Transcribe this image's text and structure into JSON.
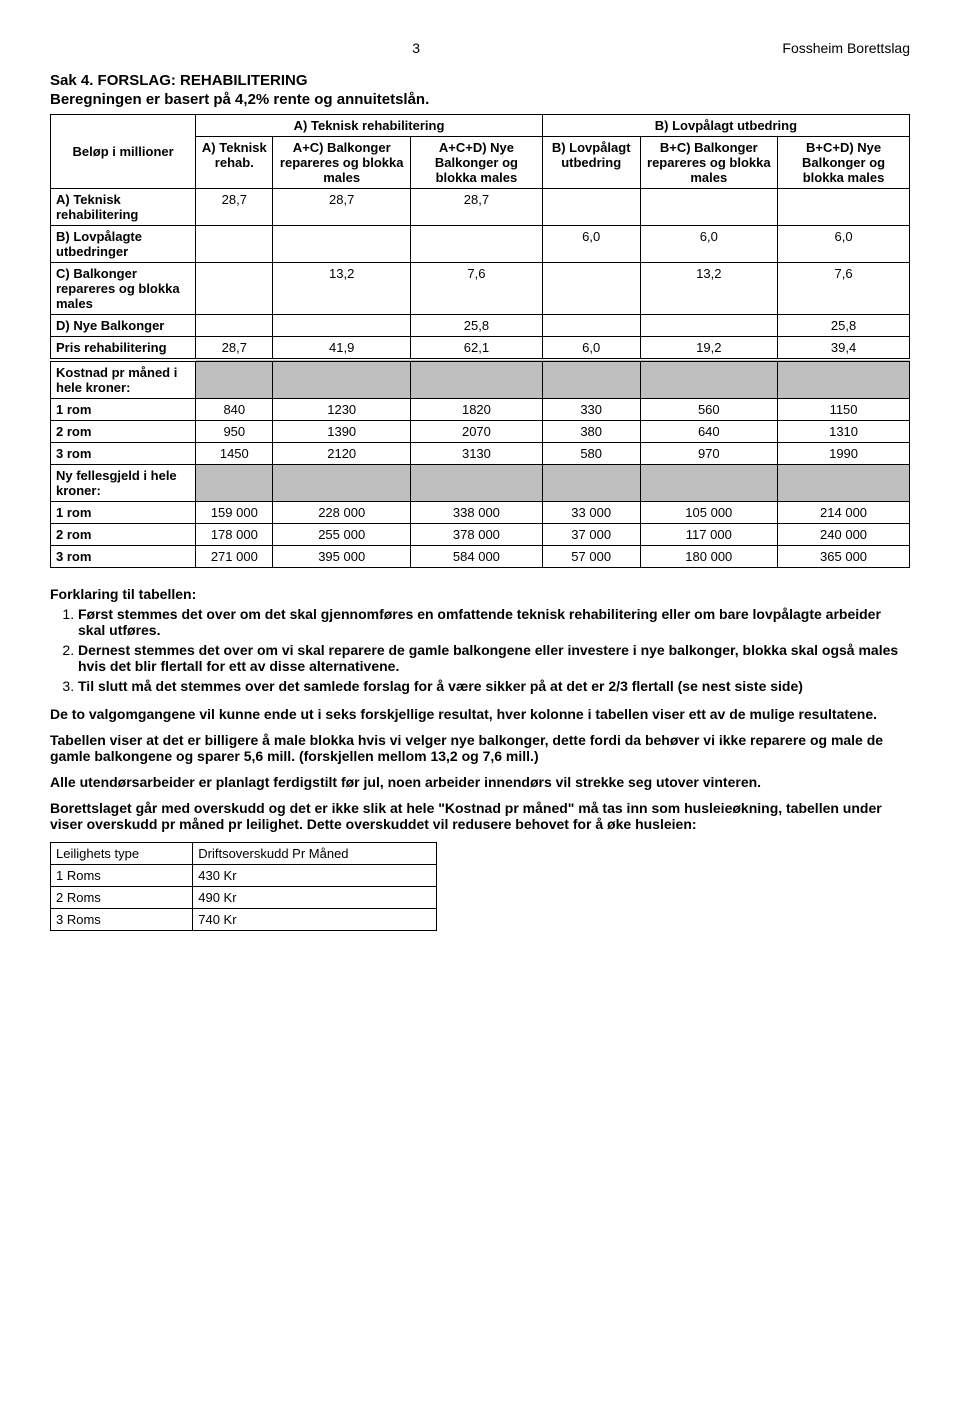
{
  "header": {
    "page_no": "3",
    "org": "Fossheim Borettslag"
  },
  "title": {
    "sak": "Sak 4. FORSLAG: REHABILITERING",
    "basis": "Beregningen er basert på 4,2% rente og annuitetslån."
  },
  "table1": {
    "belop": "Beløp i millioner",
    "group_a": "A) Teknisk rehabilitering",
    "group_b": "B) Lovpålagt utbedring",
    "cols": [
      "A) Teknisk rehab.",
      "A+C) Balkonger repareres og blokka males",
      "A+C+D) Nye Balkonger og blokka males",
      "B) Lovpålagt utbedring",
      "B+C) Balkonger repareres og blokka males",
      "B+C+D) Nye Balkonger og blokka males"
    ],
    "rows": [
      {
        "label": "A) Teknisk rehabilitering",
        "vals": [
          "28,7",
          "28,7",
          "28,7",
          "",
          "",
          ""
        ]
      },
      {
        "label": "B) Lovpålagte utbedringer",
        "vals": [
          "",
          "",
          "",
          "6,0",
          "6,0",
          "6,0"
        ]
      },
      {
        "label": "C) Balkonger repareres og blokka males",
        "vals": [
          "",
          "13,2",
          "7,6",
          "",
          "13,2",
          "7,6"
        ]
      },
      {
        "label": "D) Nye Balkonger",
        "vals": [
          "",
          "",
          "25,8",
          "",
          "",
          "25,8"
        ]
      },
      {
        "label": "Pris rehabilitering",
        "vals": [
          "28,7",
          "41,9",
          "62,1",
          "6,0",
          "19,2",
          "39,4"
        ]
      }
    ],
    "kost_label": "Kostnad pr måned i hele kroner:",
    "kost_rows": [
      {
        "label": "1 rom",
        "vals": [
          "840",
          "1230",
          "1820",
          "330",
          "560",
          "1150"
        ]
      },
      {
        "label": "2 rom",
        "vals": [
          "950",
          "1390",
          "2070",
          "380",
          "640",
          "1310"
        ]
      },
      {
        "label": "3 rom",
        "vals": [
          "1450",
          "2120",
          "3130",
          "580",
          "970",
          "1990"
        ]
      }
    ],
    "felles_label": "Ny fellesgjeld i hele kroner:",
    "felles_rows": [
      {
        "label": "1 rom",
        "vals": [
          "159 000",
          "228 000",
          "338 000",
          "33 000",
          "105 000",
          "214 000"
        ]
      },
      {
        "label": "2 rom",
        "vals": [
          "178 000",
          "255 000",
          "378 000",
          "37 000",
          "117 000",
          "240 000"
        ]
      },
      {
        "label": "3 rom",
        "vals": [
          "271 000",
          "395 000",
          "584 000",
          "57 000",
          "180 000",
          "365 000"
        ]
      }
    ]
  },
  "explain": {
    "head": "Forklaring til tabellen:",
    "items": [
      "Først stemmes det over om det skal gjennomføres en omfattende teknisk rehabilitering eller om bare lovpålagte arbeider skal utføres.",
      "Dernest stemmes det over om vi skal reparere de gamle balkongene eller investere i nye balkonger, blokka skal også males hvis det blir flertall for ett av disse alternativene.",
      "Til slutt må det stemmes over det samlede forslag for å være sikker på at det er 2/3 flertall (se nest siste side)"
    ]
  },
  "paras": [
    "De to valgomgangene vil kunne ende ut i seks forskjellige resultat, hver kolonne i tabellen viser ett av de mulige resultatene.",
    "Tabellen viser at det er billigere å male blokka hvis vi velger nye balkonger, dette fordi da behøver vi ikke reparere og male de gamle balkongene og sparer 5,6 mill. (forskjellen mellom 13,2 og 7,6 mill.)",
    "Alle utendørsarbeider er planlagt ferdigstilt før jul, noen arbeider innendørs vil strekke seg utover vinteren.",
    "Borettslaget går med overskudd og det er ikke slik at hele \"Kostnad pr måned\" må tas inn som husleieøkning, tabellen under viser overskudd pr måned pr leilighet. Dette overskuddet vil redusere behovet for å øke husleien:"
  ],
  "table2": {
    "h1": "Leilighets type",
    "h2": "Driftsoverskudd Pr Måned",
    "rows": [
      {
        "a": "1 Roms",
        "b": "430 Kr"
      },
      {
        "a": "2 Roms",
        "b": "490 Kr"
      },
      {
        "a": "3 Roms",
        "b": "740 Kr"
      }
    ]
  }
}
